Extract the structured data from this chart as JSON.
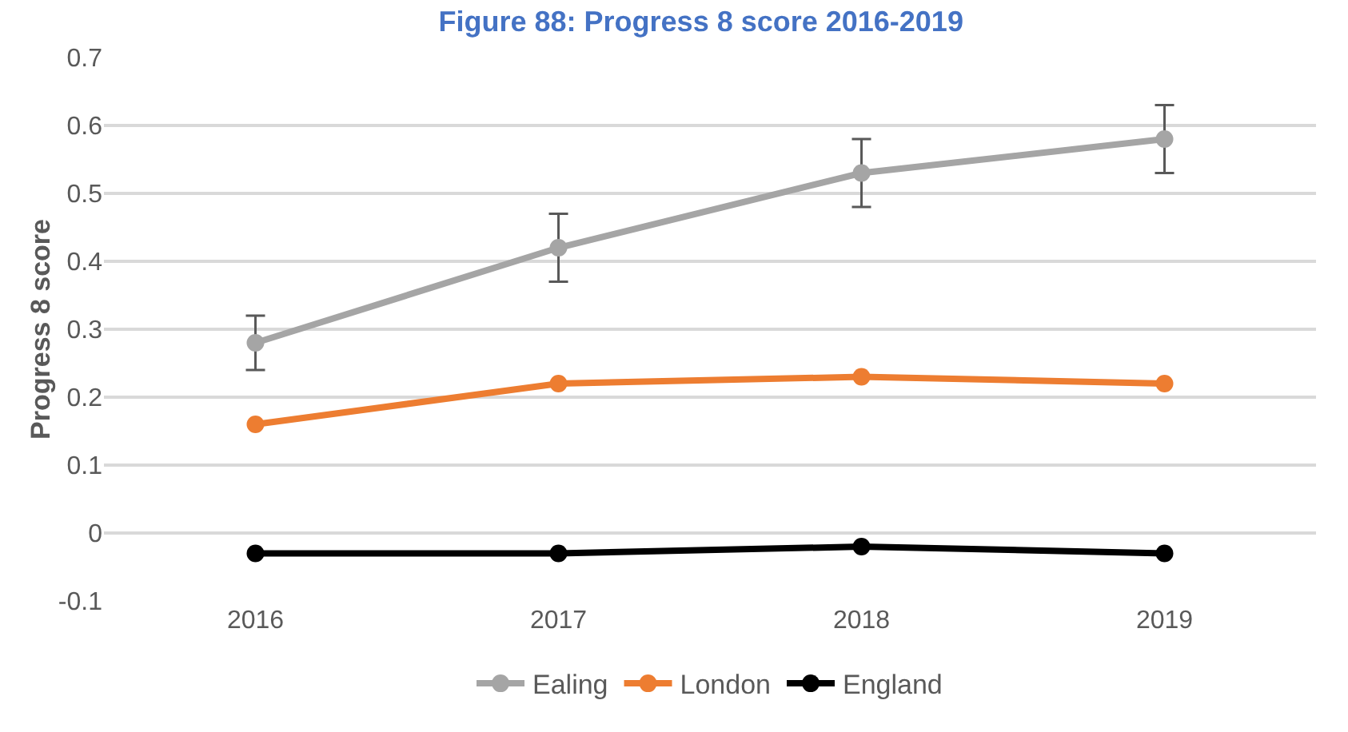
{
  "chart_data": {
    "type": "line",
    "title": "Figure 88: Progress 8 score 2016-2019",
    "ylabel": "Progress 8 score",
    "categories": [
      "2016",
      "2017",
      "2018",
      "2019"
    ],
    "series": [
      {
        "name": "Ealing",
        "color": "#a5a5a5",
        "values": [
          0.28,
          0.42,
          0.53,
          0.58
        ],
        "errors": [
          0.04,
          0.05,
          0.05,
          0.05
        ]
      },
      {
        "name": "London",
        "color": "#ed7d31",
        "values": [
          0.16,
          0.22,
          0.23,
          0.22
        ]
      },
      {
        "name": "England",
        "color": "#000000",
        "values": [
          -0.03,
          -0.03,
          -0.02,
          -0.03
        ]
      }
    ],
    "ylim": [
      -0.1,
      0.7
    ],
    "yticks": [
      -0.1,
      0,
      0.1,
      0.2,
      0.3,
      0.4,
      0.5,
      0.6,
      0.7
    ],
    "grid": "y",
    "legend": "bottom",
    "marker": "circle",
    "line_style": "solid"
  }
}
